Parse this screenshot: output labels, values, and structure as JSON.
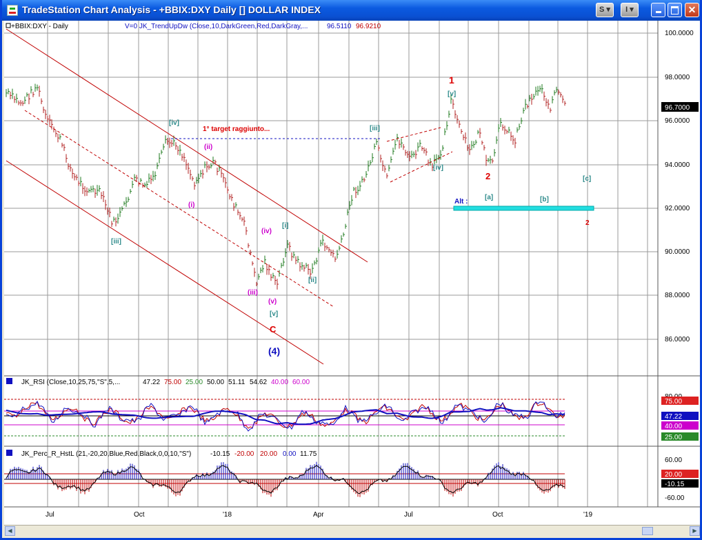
{
  "window": {
    "title": "TradeStation Chart Analysis - +BBIX:DXY Daily [] DOLLAR INDEX",
    "btn_s": "S",
    "btn_i": "I"
  },
  "price_pane": {
    "symbol_label": "+BBIX:DXY - Daily",
    "indicator_label": "V=0  JK_TrendUpDw (Close,10,DarkGreen,Red,DarkGray,...",
    "indicator_v1": "96.5110",
    "indicator_v2": "96.9210",
    "axis": [
      "100.0000",
      "98.0000",
      "96.0000",
      "94.0000",
      "92.0000",
      "90.0000",
      "88.0000",
      "86.0000"
    ],
    "last_price": "96.7000",
    "annotations": {
      "target": "1° target raggiunto...",
      "alt": "Alt :",
      "w1": "1",
      "w2": "2",
      "w2b": "2",
      "wC": "C",
      "w4": "(4)",
      "iv_a": "[iv]",
      "iii_a": "[iii]",
      "i_a": "[i]",
      "ii_a": "[ii]",
      "v_a": "[v]",
      "iii_b": "[iii]",
      "iv_b": "[iv]",
      "v_b": "[v]",
      "a_alt": "[a]",
      "b_alt": "[b]",
      "c_alt": "[c]",
      "ii_s": "(ii)",
      "i_s": "(i)",
      "iii_s": "(iii)",
      "iv_s": "(iv)",
      "v_s": "(v)"
    }
  },
  "rsi_pane": {
    "label": "JK_RSI (Close,10,25,75,\"S\",5,...",
    "vals": [
      "47.22",
      "75.00",
      "25.00",
      "50.00",
      "51.11",
      "54.62",
      "40.00",
      "60.00"
    ],
    "axis": [
      "80.00",
      "75.00",
      "47.22",
      "40.00",
      "25.00"
    ]
  },
  "perc_pane": {
    "label": "JK_Perc_R_HstL (21,-20,20,Blue,Red,Black,0,0,10,\"S\")",
    "vals": [
      "-10.15",
      "-20.00",
      "20.00",
      "0.00",
      "11.75"
    ],
    "axis": [
      "60.00",
      "20.00",
      "-10.15",
      "-60.00"
    ]
  },
  "time_axis": [
    "Jul",
    "Oct",
    "'18",
    "Apr",
    "Jul",
    "Oct",
    "'19"
  ],
  "colors": {
    "up_bar": "#1e7a1e",
    "down_bar": "#b22222",
    "channel": "#c00000",
    "wave_green": "#2e8b8b",
    "wave_magenta": "#cc00cc",
    "wave_red": "#dd0000",
    "wave_blue": "#1010c0"
  }
}
